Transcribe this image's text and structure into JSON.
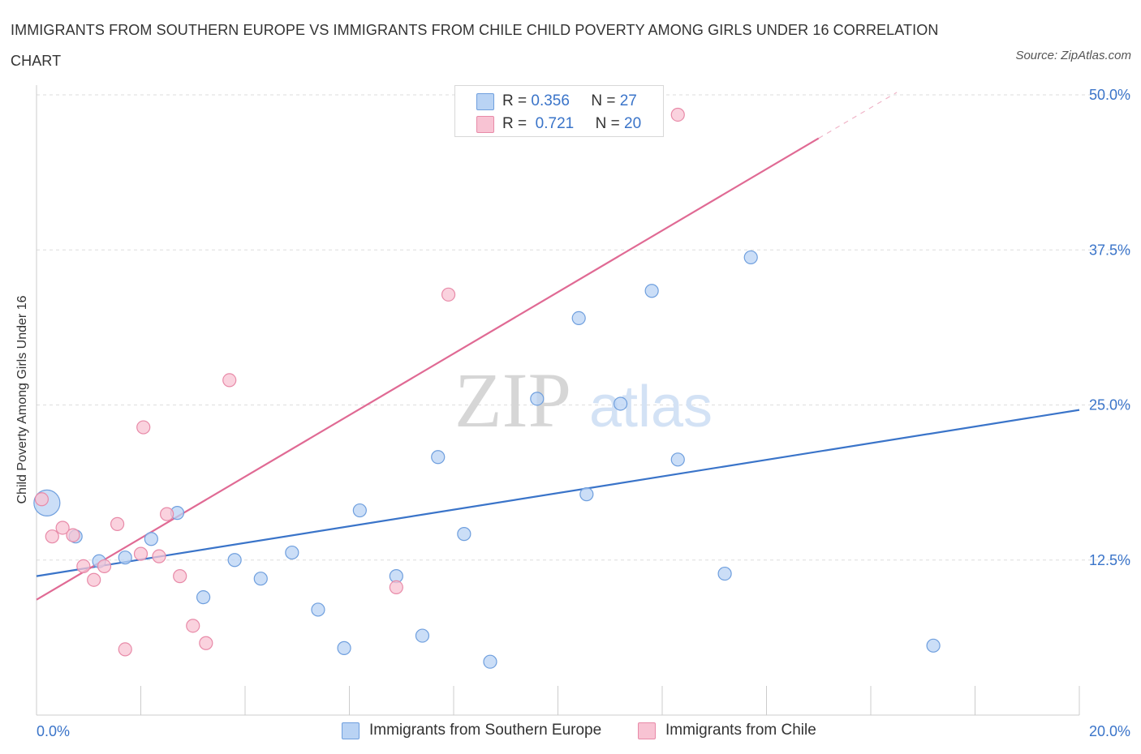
{
  "header": {
    "title": "IMMIGRANTS FROM SOUTHERN EUROPE VS IMMIGRANTS FROM CHILE CHILD POVERTY AMONG GIRLS UNDER 16 CORRELATION CHART",
    "source": "Source: ZipAtlas.com"
  },
  "watermark": {
    "zip": "ZIP",
    "atlas": "atlas"
  },
  "legend": {
    "r_label": "R =",
    "n_label": "N =",
    "series1": {
      "r": "0.356",
      "n": "27"
    },
    "series2": {
      "r": "0.721",
      "n": "20"
    }
  },
  "bottom_legend": {
    "series1": "Immigrants from Southern Europe",
    "series2": "Immigrants from Chile"
  },
  "chart_data": {
    "type": "scatter",
    "title": "IMMIGRANTS FROM SOUTHERN EUROPE VS IMMIGRANTS FROM CHILE CHILD POVERTY AMONG GIRLS UNDER 16 CORRELATION CHART",
    "xlabel": "",
    "ylabel": "Child Poverty Among Girls Under 16",
    "xlim": [
      0,
      20
    ],
    "ylim": [
      0,
      50
    ],
    "x_tick_labels": [
      {
        "value": 0,
        "label": "0.0%"
      },
      {
        "value": 20,
        "label": "20.0%"
      }
    ],
    "y_tick_labels": [
      {
        "value": 12.5,
        "label": "12.5%"
      },
      {
        "value": 25,
        "label": "25.0%"
      },
      {
        "value": 37.5,
        "label": "37.5%"
      },
      {
        "value": 50,
        "label": "50.0%"
      }
    ],
    "x_minor_ticks": [
      0,
      2,
      4,
      6,
      8,
      10,
      12,
      14,
      16,
      18,
      20
    ],
    "grid": true,
    "legend_position": "top-center",
    "colors": {
      "series1_fill": "#b9d3f4",
      "series1_stroke": "#6f9fde",
      "series1_line": "#3a74c9",
      "series2_fill": "#f8c3d3",
      "series2_stroke": "#e88aa8",
      "series2_line": "#e06a94",
      "axis_label": "#3a74c9",
      "grid": "#dddddd"
    },
    "series": [
      {
        "name": "Immigrants from Southern Europe",
        "R": 0.356,
        "N": 27,
        "trend": {
          "x0": 0,
          "y0": 11.2,
          "x1": 20,
          "y1": 24.6
        },
        "points": [
          {
            "x": 0.2,
            "y": 17.1,
            "size": "large"
          },
          {
            "x": 0.75,
            "y": 14.4
          },
          {
            "x": 1.2,
            "y": 12.4
          },
          {
            "x": 1.7,
            "y": 12.7
          },
          {
            "x": 2.2,
            "y": 14.2
          },
          {
            "x": 2.7,
            "y": 16.3
          },
          {
            "x": 3.2,
            "y": 9.5
          },
          {
            "x": 3.8,
            "y": 12.5
          },
          {
            "x": 4.3,
            "y": 11.0
          },
          {
            "x": 4.9,
            "y": 13.1
          },
          {
            "x": 5.4,
            "y": 8.5
          },
          {
            "x": 5.9,
            "y": 5.4
          },
          {
            "x": 6.2,
            "y": 16.5
          },
          {
            "x": 6.9,
            "y": 11.2
          },
          {
            "x": 7.4,
            "y": 6.4
          },
          {
            "x": 7.7,
            "y": 20.8
          },
          {
            "x": 8.2,
            "y": 14.6
          },
          {
            "x": 8.7,
            "y": 4.3
          },
          {
            "x": 9.6,
            "y": 25.5
          },
          {
            "x": 10.4,
            "y": 32.0
          },
          {
            "x": 10.55,
            "y": 17.8
          },
          {
            "x": 11.2,
            "y": 25.1
          },
          {
            "x": 11.8,
            "y": 34.2
          },
          {
            "x": 12.3,
            "y": 20.6
          },
          {
            "x": 13.2,
            "y": 11.4
          },
          {
            "x": 13.7,
            "y": 36.9
          },
          {
            "x": 17.2,
            "y": 5.6
          }
        ]
      },
      {
        "name": "Immigrants from Chile",
        "R": 0.721,
        "N": 20,
        "trend": {
          "x0": 0,
          "y0": 9.3,
          "x1": 15.0,
          "y1": 46.5,
          "dash_x1": 16.5,
          "dash_y1": 50.2
        },
        "points": [
          {
            "x": 0.1,
            "y": 17.4
          },
          {
            "x": 0.3,
            "y": 14.4
          },
          {
            "x": 0.5,
            "y": 15.1
          },
          {
            "x": 0.7,
            "y": 14.5
          },
          {
            "x": 0.9,
            "y": 12.0
          },
          {
            "x": 1.1,
            "y": 10.9
          },
          {
            "x": 1.3,
            "y": 12.0
          },
          {
            "x": 1.55,
            "y": 15.4
          },
          {
            "x": 1.7,
            "y": 5.3
          },
          {
            "x": 2.0,
            "y": 13.0
          },
          {
            "x": 2.05,
            "y": 23.2
          },
          {
            "x": 2.35,
            "y": 12.8
          },
          {
            "x": 2.5,
            "y": 16.2
          },
          {
            "x": 2.75,
            "y": 11.2
          },
          {
            "x": 3.0,
            "y": 7.2
          },
          {
            "x": 3.25,
            "y": 5.8
          },
          {
            "x": 3.7,
            "y": 27.0
          },
          {
            "x": 6.9,
            "y": 10.3
          },
          {
            "x": 7.9,
            "y": 33.9
          },
          {
            "x": 12.3,
            "y": 48.4
          }
        ]
      }
    ]
  }
}
